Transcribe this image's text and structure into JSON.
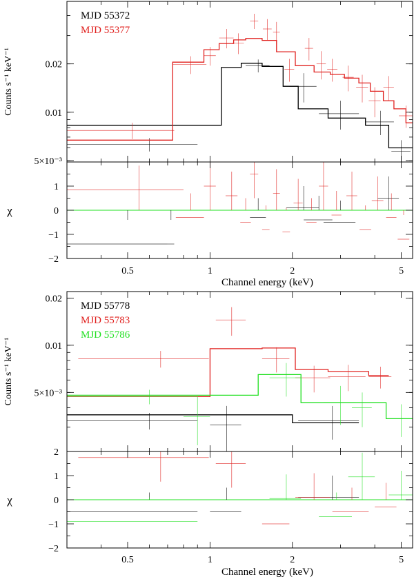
{
  "colors": {
    "black": "#000000",
    "red": "#e0201e",
    "green": "#22e022"
  },
  "chart_data": [
    {
      "type": "line",
      "panel": "top-spectrum",
      "xscale": "log",
      "yscale": "log",
      "xlim": [
        0.3,
        5.5
      ],
      "ylim": [
        0.0049,
        0.049
      ],
      "xlabel": "Channel energy (keV)",
      "ylabel": "Counts s⁻¹ keV⁻¹",
      "y_ticks": [
        {
          "value": 0.005,
          "label": "5×10⁻³"
        },
        {
          "value": 0.01,
          "label": "0.01"
        },
        {
          "value": 0.02,
          "label": "0.02"
        }
      ],
      "legend_position": "top-left",
      "series": [
        {
          "name": "MJD 55372",
          "color": "black",
          "model_steps": [
            [
              0.3,
              0.0083
            ],
            [
              1.1,
              0.0083
            ],
            [
              1.1,
              0.019
            ],
            [
              1.3,
              0.019
            ],
            [
              1.3,
              0.0202
            ],
            [
              1.55,
              0.0202
            ],
            [
              1.55,
              0.0193
            ],
            [
              1.85,
              0.0193
            ],
            [
              1.85,
              0.0145
            ],
            [
              2.1,
              0.0145
            ],
            [
              2.1,
              0.0105
            ],
            [
              2.7,
              0.0105
            ],
            [
              2.7,
              0.0092
            ],
            [
              3.7,
              0.0092
            ],
            [
              3.7,
              0.0083
            ],
            [
              4.5,
              0.0083
            ],
            [
              4.5,
              0.006
            ],
            [
              5.5,
              0.006
            ]
          ],
          "points": [
            [
              0.6,
              0.0063,
              0.3,
              0.0006
            ],
            [
              1.5,
              0.0195,
              0.15,
              0.0018
            ],
            [
              2.2,
              0.0145,
              0.25,
              0.003
            ],
            [
              3.0,
              0.0098,
              0.5,
              0.002
            ],
            [
              4.2,
              0.0087,
              0.5,
              0.0015
            ],
            [
              5.0,
              0.0057,
              0.4,
              0.001
            ]
          ]
        },
        {
          "name": "MJD 55377",
          "color": "red",
          "model_steps": [
            [
              0.3,
              0.0067
            ],
            [
              0.73,
              0.0067
            ],
            [
              0.73,
              0.0205
            ],
            [
              0.95,
              0.0205
            ],
            [
              0.95,
              0.0245
            ],
            [
              1.08,
              0.0245
            ],
            [
              1.08,
              0.0268
            ],
            [
              1.22,
              0.0268
            ],
            [
              1.22,
              0.0282
            ],
            [
              1.35,
              0.0282
            ],
            [
              1.35,
              0.0288
            ],
            [
              1.55,
              0.0288
            ],
            [
              1.55,
              0.028
            ],
            [
              1.75,
              0.028
            ],
            [
              1.75,
              0.0238
            ],
            [
              2.05,
              0.0238
            ],
            [
              2.05,
              0.0195
            ],
            [
              2.4,
              0.0195
            ],
            [
              2.4,
              0.0178
            ],
            [
              2.75,
              0.0178
            ],
            [
              2.75,
              0.0172
            ],
            [
              3.1,
              0.0172
            ],
            [
              3.1,
              0.0163
            ],
            [
              3.5,
              0.0163
            ],
            [
              3.5,
              0.0152
            ],
            [
              3.85,
              0.0152
            ],
            [
              3.85,
              0.0135
            ],
            [
              4.3,
              0.0135
            ],
            [
              4.3,
              0.0118
            ],
            [
              4.7,
              0.0118
            ],
            [
              4.7,
              0.0105
            ],
            [
              5.2,
              0.0105
            ],
            [
              5.2,
              0.0086
            ],
            [
              5.5,
              0.0086
            ]
          ],
          "points": [
            [
              0.52,
              0.0077,
              0.22,
              0.0009
            ],
            [
              0.85,
              0.0198,
              0.12,
              0.0025
            ],
            [
              1.0,
              0.0225,
              0.05,
              0.003
            ],
            [
              1.15,
              0.029,
              0.07,
              0.004
            ],
            [
              1.27,
              0.027,
              0.06,
              0.004
            ],
            [
              1.45,
              0.037,
              0.05,
              0.004
            ],
            [
              1.62,
              0.033,
              0.06,
              0.005
            ],
            [
              1.75,
              0.0315,
              0.05,
              0.005
            ],
            [
              1.95,
              0.0185,
              0.08,
              0.003
            ],
            [
              2.3,
              0.025,
              0.08,
              0.004
            ],
            [
              2.55,
              0.02,
              0.1,
              0.004
            ],
            [
              2.8,
              0.0185,
              0.12,
              0.003
            ],
            [
              3.2,
              0.0165,
              0.15,
              0.003
            ],
            [
              3.6,
              0.0143,
              0.18,
              0.0028
            ],
            [
              4.0,
              0.0118,
              0.2,
              0.0025
            ],
            [
              4.5,
              0.0143,
              0.2,
              0.0025
            ],
            [
              5.2,
              0.0095,
              0.3,
              0.0015
            ]
          ]
        }
      ]
    },
    {
      "type": "scatter",
      "panel": "top-residuals",
      "xscale": "log",
      "xlim": [
        0.3,
        5.5
      ],
      "ylim": [
        -2,
        2
      ],
      "ylabel": "χ",
      "xlabel": "Channel energy (keV)",
      "x_ticks": [
        {
          "value": 0.5,
          "label": "0.5"
        },
        {
          "value": 1,
          "label": "1"
        },
        {
          "value": 2,
          "label": "2"
        },
        {
          "value": 5,
          "label": "5"
        }
      ],
      "y_ticks": [
        -2,
        -1,
        0,
        1
      ],
      "zero_line_color": "green",
      "series": [
        {
          "name": "MJD 55372",
          "color": "black",
          "points": [
            [
              0.5,
              -1.4,
              0.2,
              1
            ],
            [
              0.72,
              -1.4,
              0.02,
              1
            ],
            [
              1.5,
              -0.3,
              0.1,
              0.8
            ],
            [
              2.2,
              0.1,
              0.3,
              0.9
            ],
            [
              3.0,
              -0.5,
              0.4,
              0.9
            ],
            [
              4.5,
              0.5,
              0.4,
              0.9
            ],
            [
              2.5,
              -0.4,
              0.3,
              1
            ]
          ]
        },
        {
          "name": "MJD 55377",
          "color": "red",
          "points": [
            [
              0.55,
              0.85,
              0.25,
              1
            ],
            [
              0.85,
              -0.3,
              0.1,
              1
            ],
            [
              1.0,
              1.0,
              0.05,
              1
            ],
            [
              1.2,
              0.6,
              0.06,
              1
            ],
            [
              1.35,
              -0.5,
              0.06,
              1
            ],
            [
              1.45,
              1.5,
              0.05,
              1
            ],
            [
              1.6,
              -0.8,
              0.05,
              1
            ],
            [
              1.75,
              0.7,
              0.05,
              1
            ],
            [
              1.9,
              -0.9,
              0.06,
              1
            ],
            [
              2.1,
              0.3,
              0.08,
              1
            ],
            [
              2.35,
              -0.5,
              0.1,
              1
            ],
            [
              2.6,
              1.0,
              0.1,
              1
            ],
            [
              2.9,
              -0.2,
              0.12,
              1
            ],
            [
              3.3,
              0.6,
              0.15,
              1
            ],
            [
              3.7,
              -0.8,
              0.18,
              1
            ],
            [
              4.1,
              0.4,
              0.2,
              1
            ],
            [
              4.6,
              -0.3,
              0.2,
              1
            ],
            [
              5.1,
              -1.2,
              0.25,
              1
            ]
          ]
        }
      ]
    },
    {
      "type": "line",
      "panel": "bottom-spectrum",
      "xscale": "log",
      "yscale": "log",
      "xlim": [
        0.3,
        5.5
      ],
      "ylim": [
        0.0021,
        0.022
      ],
      "xlabel": "Channel energy (keV)",
      "ylabel": "Counts s⁻¹ keV⁻¹",
      "y_ticks": [
        {
          "value": 0.005,
          "label": "5×10⁻³"
        },
        {
          "value": 0.01,
          "label": "0.01"
        },
        {
          "value": 0.02,
          "label": "0.02"
        }
      ],
      "legend_position": "top-left",
      "series": [
        {
          "name": "MJD 55778",
          "color": "black",
          "model_steps": [
            [
              0.3,
              0.0036
            ],
            [
              2.0,
              0.0036
            ],
            [
              2.0,
              0.0032
            ],
            [
              3.5,
              0.0032
            ]
          ],
          "points": [
            [
              0.6,
              0.0033,
              0.3,
              0.0004
            ],
            [
              1.15,
              0.0031,
              0.15,
              0.001
            ],
            [
              2.8,
              0.0033,
              0.7,
              0.0008
            ]
          ]
        },
        {
          "name": "MJD 55783",
          "color": "red",
          "model_steps": [
            [
              0.3,
              0.0047
            ],
            [
              1.0,
              0.0047
            ],
            [
              1.0,
              0.0095
            ],
            [
              1.55,
              0.0095
            ],
            [
              1.55,
              0.0096
            ],
            [
              2.05,
              0.0096
            ],
            [
              2.05,
              0.007
            ],
            [
              2.7,
              0.007
            ],
            [
              2.7,
              0.0068
            ],
            [
              3.8,
              0.0068
            ],
            [
              3.8,
              0.0064
            ],
            [
              4.5,
              0.0064
            ]
          ],
          "points": [
            [
              0.66,
              0.0082,
              0.33,
              0.001
            ],
            [
              1.2,
              0.0145,
              0.15,
              0.003
            ],
            [
              1.75,
              0.0082,
              0.2,
              0.0015
            ],
            [
              2.4,
              0.0062,
              0.35,
              0.0012
            ],
            [
              3.2,
              0.0063,
              0.5,
              0.0012
            ],
            [
              4.2,
              0.0063,
              0.4,
              0.001
            ]
          ]
        },
        {
          "name": "MJD 55786",
          "color": "green",
          "model_steps": [
            [
              0.3,
              0.0048
            ],
            [
              1.5,
              0.0048
            ],
            [
              1.5,
              0.0065
            ],
            [
              2.15,
              0.0065
            ],
            [
              2.15,
              0.0043
            ],
            [
              4.4,
              0.0043
            ],
            [
              4.4,
              0.0034
            ],
            [
              5.5,
              0.0034
            ]
          ],
          "points": [
            [
              0.6,
              0.0047,
              0.3,
              0.0005
            ],
            [
              0.9,
              0.0035,
              0.1,
              0.0012
            ],
            [
              1.9,
              0.0062,
              0.25,
              0.0015
            ],
            [
              3.0,
              0.0043,
              0.4,
              0.0012
            ],
            [
              3.6,
              0.004,
              0.3,
              0.001
            ],
            [
              5.0,
              0.0034,
              0.5,
              0.0008
            ]
          ]
        }
      ]
    },
    {
      "type": "scatter",
      "panel": "bottom-residuals",
      "xscale": "log",
      "xlim": [
        0.3,
        5.5
      ],
      "ylim": [
        -2,
        2
      ],
      "ylabel": "χ",
      "xlabel": "Channel energy (keV)",
      "x_ticks": [
        {
          "value": 0.5,
          "label": "0.5"
        },
        {
          "value": 1,
          "label": "1"
        },
        {
          "value": 2,
          "label": "2"
        },
        {
          "value": 5,
          "label": "5"
        }
      ],
      "y_ticks": [
        -2,
        -1,
        0,
        1,
        2
      ],
      "zero_line_color": "green",
      "series": [
        {
          "name": "MJD 55778",
          "color": "black",
          "points": [
            [
              0.6,
              -0.5,
              0.3,
              0.8
            ],
            [
              1.15,
              -0.5,
              0.15,
              1
            ],
            [
              2.8,
              0.1,
              0.7,
              0.9
            ]
          ]
        },
        {
          "name": "MJD 55783",
          "color": "red",
          "points": [
            [
              0.66,
              1.75,
              0.33,
              1
            ],
            [
              1.2,
              1.5,
              0.15,
              1
            ],
            [
              1.75,
              -1.0,
              0.2,
              1
            ],
            [
              2.4,
              0.1,
              0.35,
              1
            ],
            [
              3.3,
              -0.5,
              0.5,
              1
            ],
            [
              4.4,
              -0.3,
              0.4,
              1
            ]
          ]
        },
        {
          "name": "MJD 55786",
          "color": "green",
          "points": [
            [
              0.6,
              -0.9,
              0.3,
              1
            ],
            [
              1.9,
              0.05,
              0.25,
              1
            ],
            [
              2.9,
              -0.7,
              0.4,
              1
            ],
            [
              3.6,
              0.95,
              0.4,
              1
            ],
            [
              5.0,
              0.2,
              0.5,
              1
            ]
          ]
        }
      ]
    }
  ]
}
